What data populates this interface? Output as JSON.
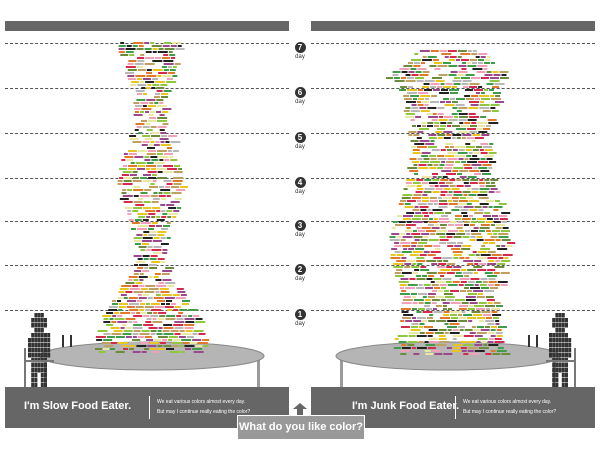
{
  "days": [
    {
      "number": "7",
      "word": "day"
    },
    {
      "number": "6",
      "word": "day"
    },
    {
      "number": "5",
      "word": "day"
    },
    {
      "number": "4",
      "word": "day"
    },
    {
      "number": "3",
      "word": "day"
    },
    {
      "number": "2",
      "word": "day"
    },
    {
      "number": "1",
      "word": "day"
    }
  ],
  "left_panel": {
    "title": "I'm Slow Food Eater.",
    "desc_line1": "We eat various colors almost every day.",
    "desc_line2": "But may I continue really eating the color?"
  },
  "right_panel": {
    "title": "I'm Junk Food Eater.",
    "desc_line1": "We eat various colors almost every day.",
    "desc_line2": "But may I continue really eating the color?"
  },
  "question": "What do you like color?",
  "colors": {
    "bar": "#666666",
    "table": "#b5b5b5",
    "swatches": [
      "#d42a4e",
      "#e8c521",
      "#8fc840",
      "#3f9c4a",
      "#e07a2b",
      "#222222",
      "#b8b8b8",
      "#9a4a8c",
      "#f0a0b8",
      "#c0a060",
      "#6c8c3c",
      "#e8e8a0"
    ]
  }
}
